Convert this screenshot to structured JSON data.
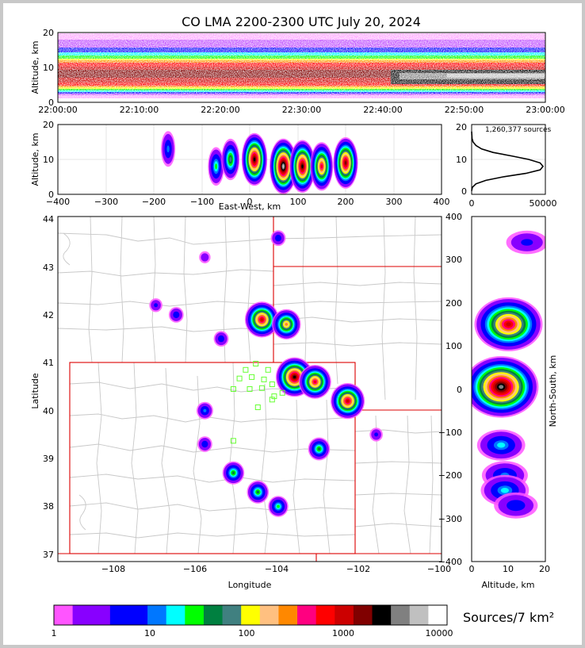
{
  "title": "CO LMA 2200-2300 UTC July 20, 2024",
  "colors": {
    "map_border": "#dd0000",
    "county_lines": "#c8c8c8",
    "station_markers": "#66ff33",
    "profile_line": "#000000"
  },
  "colorbar": {
    "unit_label": "Sources/7 km²",
    "colors": [
      "#ff55ff",
      "#8800ff",
      "#8800ff",
      "#0000ff",
      "#0000ff",
      "#0077ff",
      "#00ffff",
      "#00ff00",
      "#008040",
      "#408080",
      "#ffff00",
      "#ffc080",
      "#ff8800",
      "#ff0080",
      "#ff0000",
      "#cc0000",
      "#800000",
      "#000000",
      "#808080",
      "#c0c0c0",
      "#ffffff"
    ],
    "tick_labels": [
      "1",
      "10",
      "100",
      "1000",
      "10000"
    ]
  },
  "chart_data": [
    {
      "id": "time_height",
      "type": "heatmap",
      "title": "",
      "xlabel": "",
      "ylabel": "Altitude, km",
      "x_ticks": [
        "22:00:00",
        "22:10:00",
        "22:20:00",
        "22:30:00",
        "22:40:00",
        "22:50:00",
        "23:00:00"
      ],
      "y_ticks": [
        "0",
        "10",
        "20"
      ],
      "ylim": [
        0,
        20
      ],
      "description_of_mass": "dense layer between ~3 and ~13 km altitude, peak density 5–10 km, whitest after 22:40"
    },
    {
      "id": "ew_altitude",
      "type": "heatmap",
      "xlabel": "East-West, km",
      "ylabel": "Altitude, km",
      "x_ticks": [
        "−400",
        "−300",
        "−200",
        "−100",
        "0",
        "100",
        "200",
        "300",
        "400"
      ],
      "y_ticks": [
        "0",
        "10",
        "20"
      ],
      "xlim": [
        -400,
        400
      ],
      "ylim": [
        0,
        20
      ],
      "cells": [
        {
          "x": -170,
          "z": 13,
          "level": 5
        },
        {
          "x": -70,
          "z": 8,
          "level": 7
        },
        {
          "x": -40,
          "z": 10,
          "level": 9
        },
        {
          "x": 10,
          "z": 10,
          "level": 17
        },
        {
          "x": 70,
          "z": 8,
          "level": 19
        },
        {
          "x": 110,
          "z": 8,
          "level": 17
        },
        {
          "x": 150,
          "z": 8,
          "level": 14
        },
        {
          "x": 200,
          "z": 9,
          "level": 16
        }
      ]
    },
    {
      "id": "altitude_histogram",
      "type": "line",
      "annotation": "1,260,377 sources",
      "x_ticks": [
        "0",
        "50000"
      ],
      "y_ticks": [
        "0",
        "10",
        "20"
      ],
      "xlim": [
        0,
        50000
      ],
      "ylim": [
        0,
        20
      ],
      "x": [
        0,
        500,
        3000,
        10000,
        22000,
        38000,
        48000,
        50000,
        48000,
        40000,
        28000,
        15000,
        7000,
        3000,
        1000,
        300,
        0
      ],
      "y": [
        1,
        2,
        3,
        4,
        5,
        6,
        7,
        8,
        9,
        10,
        11,
        12,
        13,
        14,
        15,
        16,
        18
      ]
    },
    {
      "id": "plan_map",
      "type": "heatmap",
      "xlabel": "Longitude",
      "ylabel": "Latitude",
      "x_ticks": [
        "−108",
        "−106",
        "−104",
        "−102",
        "−100"
      ],
      "y_ticks": [
        "37",
        "38",
        "39",
        "40",
        "41",
        "42",
        "43",
        "44"
      ],
      "xlim": [
        -109.3,
        -99.9
      ],
      "ylim": [
        36.85,
        44.05
      ],
      "cells": [
        {
          "lon": -103.9,
          "lat": 43.6,
          "level": 4
        },
        {
          "lon": -105.7,
          "lat": 43.2,
          "level": 2
        },
        {
          "lon": -106.9,
          "lat": 42.2,
          "level": 3
        },
        {
          "lon": -106.4,
          "lat": 42.0,
          "level": 4
        },
        {
          "lon": -104.3,
          "lat": 41.9,
          "level": 15
        },
        {
          "lon": -103.7,
          "lat": 41.8,
          "level": 12
        },
        {
          "lon": -105.3,
          "lat": 41.5,
          "level": 4
        },
        {
          "lon": -103.5,
          "lat": 40.7,
          "level": 17
        },
        {
          "lon": -103.0,
          "lat": 40.6,
          "level": 14
        },
        {
          "lon": -102.2,
          "lat": 40.2,
          "level": 15
        },
        {
          "lon": -105.7,
          "lat": 40.0,
          "level": 5
        },
        {
          "lon": -101.5,
          "lat": 39.5,
          "level": 3
        },
        {
          "lon": -102.9,
          "lat": 39.2,
          "level": 8
        },
        {
          "lon": -105.0,
          "lat": 38.7,
          "level": 8
        },
        {
          "lon": -104.4,
          "lat": 38.3,
          "level": 8
        },
        {
          "lon": -103.9,
          "lat": 38.0,
          "level": 7
        },
        {
          "lon": -105.7,
          "lat": 39.3,
          "level": 4
        }
      ],
      "stations": [
        [
          -104.45,
          40.98
        ],
        [
          -104.7,
          40.85
        ],
        [
          -104.15,
          40.85
        ],
        [
          -104.85,
          40.67
        ],
        [
          -104.55,
          40.7
        ],
        [
          -104.25,
          40.65
        ],
        [
          -104.05,
          40.55
        ],
        [
          -105.0,
          40.45
        ],
        [
          -104.6,
          40.45
        ],
        [
          -104.3,
          40.47
        ],
        [
          -104.0,
          40.3
        ],
        [
          -103.8,
          40.37
        ],
        [
          -104.05,
          40.23
        ],
        [
          -104.4,
          40.07
        ],
        [
          -105.0,
          39.37
        ]
      ]
    },
    {
      "id": "ns_altitude",
      "type": "heatmap",
      "xlabel": "Altitude, km",
      "ylabel": "North-South, km",
      "x_ticks": [
        "0",
        "10",
        "20"
      ],
      "y_ticks": [
        "400",
        "300",
        "200",
        "100",
        "0",
        "−100",
        "−200",
        "−300",
        "−400"
      ],
      "xlim": [
        0,
        20
      ],
      "ylim": [
        -400,
        400
      ],
      "cells": [
        {
          "y": 340,
          "z": 15,
          "level": 3
        },
        {
          "y": 150,
          "z": 10,
          "level": 15
        },
        {
          "y": 5,
          "z": 8,
          "level": 18
        },
        {
          "y": -130,
          "z": 8,
          "level": 6
        },
        {
          "y": -200,
          "z": 9,
          "level": 5
        },
        {
          "y": -235,
          "z": 9,
          "level": 6
        },
        {
          "y": -270,
          "z": 12,
          "level": 4
        }
      ]
    }
  ]
}
